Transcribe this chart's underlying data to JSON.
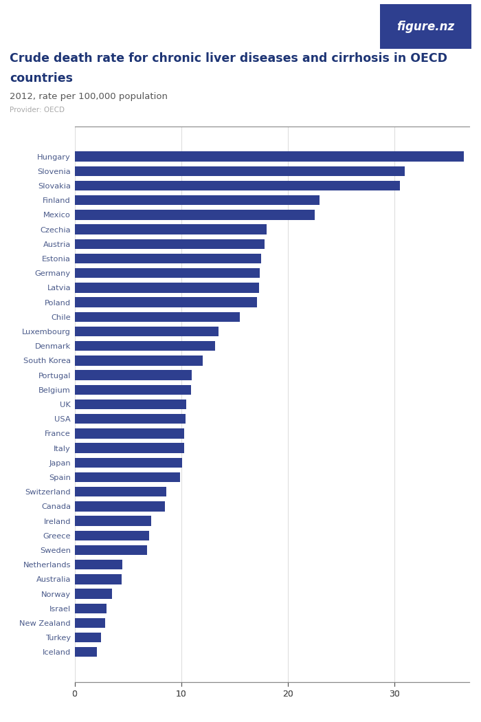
{
  "title_line1": "Crude death rate for chronic liver diseases and cirrhosis in OECD",
  "title_line2": "countries",
  "subtitle": "2012, rate per 100,000 population",
  "provider": "Provider: OECD",
  "bar_color": "#2e3f8f",
  "background_color": "#ffffff",
  "logo_bg_color": "#2e3f8f",
  "logo_text": "figure.nz",
  "xlim": [
    0,
    37
  ],
  "xticks": [
    0,
    10,
    20,
    30
  ],
  "countries": [
    "Hungary",
    "Slovenia",
    "Slovakia",
    "Finland",
    "Mexico",
    "Czechia",
    "Austria",
    "Estonia",
    "Germany",
    "Latvia",
    "Poland",
    "Chile",
    "Luxembourg",
    "Denmark",
    "South Korea",
    "Portugal",
    "Belgium",
    "UK",
    "USA",
    "France",
    "Italy",
    "Japan",
    "Spain",
    "Switzerland",
    "Canada",
    "Ireland",
    "Greece",
    "Sweden",
    "Netherlands",
    "Australia",
    "Norway",
    "Israel",
    "New Zealand",
    "Turkey",
    "Iceland"
  ],
  "values": [
    36.5,
    31.0,
    30.5,
    23.0,
    22.5,
    18.0,
    17.8,
    17.5,
    17.4,
    17.3,
    17.1,
    15.5,
    13.5,
    13.2,
    12.0,
    11.0,
    10.9,
    10.5,
    10.4,
    10.3,
    10.3,
    10.1,
    9.9,
    8.6,
    8.5,
    7.2,
    7.0,
    6.8,
    4.5,
    4.4,
    3.5,
    3.0,
    2.9,
    2.5,
    2.1
  ]
}
